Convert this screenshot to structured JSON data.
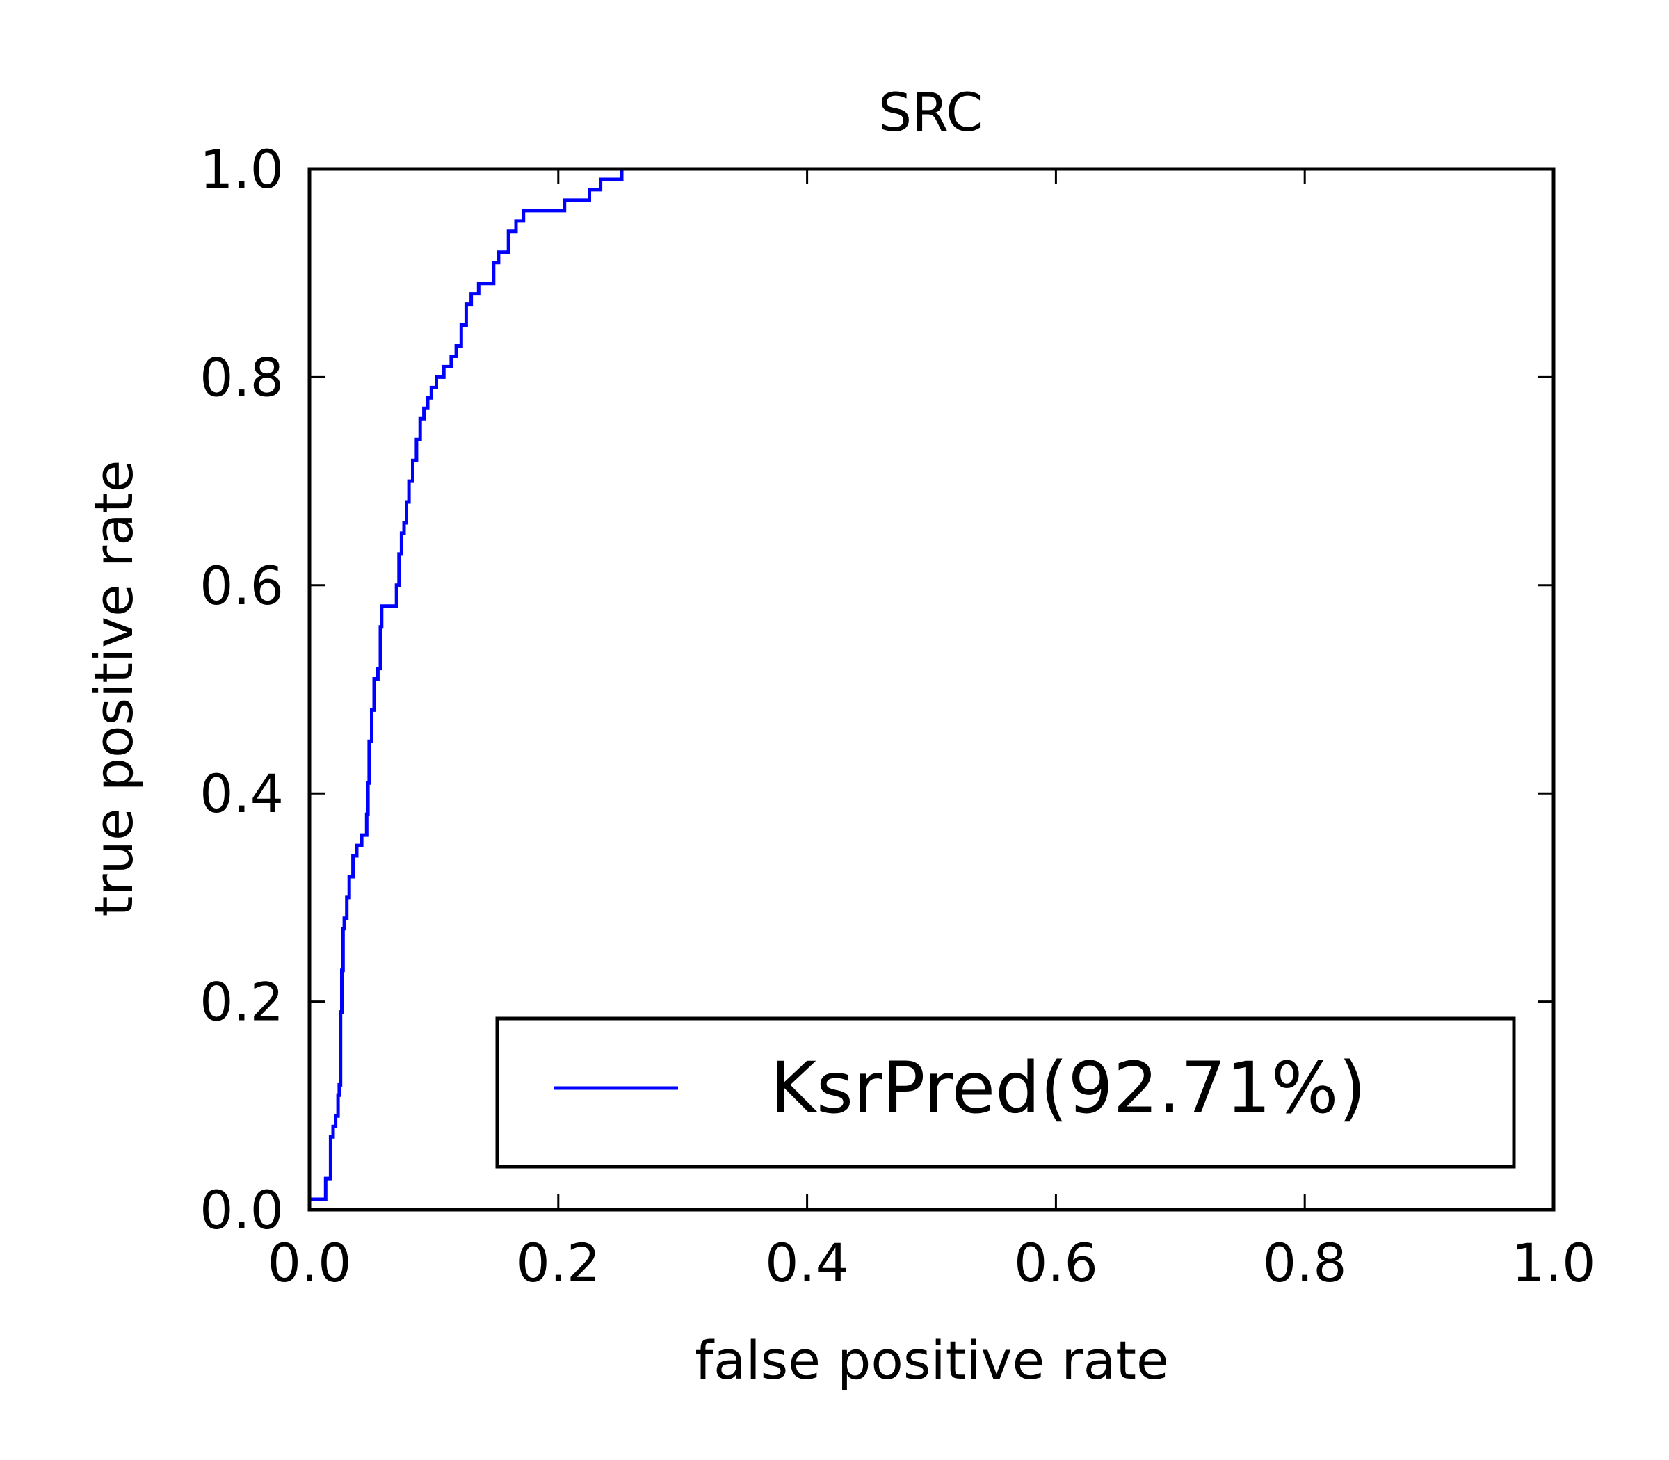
{
  "chart_data": {
    "type": "line",
    "title": "SRC",
    "xlabel": "false positive rate",
    "ylabel": "true positive rate",
    "xlim": [
      0.0,
      1.0
    ],
    "ylim": [
      0.0,
      1.0
    ],
    "xticks": [
      "0.0",
      "0.2",
      "0.4",
      "0.6",
      "0.8",
      "1.0"
    ],
    "yticks": [
      "0.0",
      "0.2",
      "0.4",
      "0.6",
      "0.8",
      "1.0"
    ],
    "grid": false,
    "legend_position": "lower-right",
    "series": [
      {
        "name": "KsrPred(92.71%)",
        "color": "#0000ff",
        "x": [
          0.0,
          0.013,
          0.013,
          0.017,
          0.017,
          0.019,
          0.019,
          0.021,
          0.021,
          0.023,
          0.023,
          0.024,
          0.024,
          0.025,
          0.025,
          0.026,
          0.026,
          0.027,
          0.027,
          0.028,
          0.028,
          0.03,
          0.03,
          0.032,
          0.032,
          0.035,
          0.035,
          0.038,
          0.038,
          0.042,
          0.042,
          0.046,
          0.046,
          0.047,
          0.047,
          0.048,
          0.048,
          0.05,
          0.05,
          0.052,
          0.052,
          0.055,
          0.055,
          0.057,
          0.057,
          0.058,
          0.058,
          0.07,
          0.07,
          0.072,
          0.072,
          0.074,
          0.074,
          0.076,
          0.076,
          0.078,
          0.078,
          0.08,
          0.08,
          0.083,
          0.083,
          0.086,
          0.086,
          0.089,
          0.089,
          0.092,
          0.092,
          0.095,
          0.095,
          0.098,
          0.098,
          0.102,
          0.102,
          0.108,
          0.108,
          0.114,
          0.114,
          0.118,
          0.118,
          0.122,
          0.122,
          0.126,
          0.126,
          0.13,
          0.13,
          0.136,
          0.136,
          0.148,
          0.148,
          0.152,
          0.152,
          0.16,
          0.16,
          0.166,
          0.166,
          0.172,
          0.172,
          0.205,
          0.205,
          0.225,
          0.225,
          0.234,
          0.234,
          0.251,
          0.251,
          1.0
        ],
        "y": [
          0.01,
          0.01,
          0.03,
          0.03,
          0.07,
          0.07,
          0.08,
          0.08,
          0.09,
          0.09,
          0.11,
          0.11,
          0.12,
          0.12,
          0.19,
          0.19,
          0.23,
          0.23,
          0.27,
          0.27,
          0.28,
          0.28,
          0.3,
          0.3,
          0.32,
          0.32,
          0.34,
          0.34,
          0.35,
          0.35,
          0.36,
          0.36,
          0.38,
          0.38,
          0.41,
          0.41,
          0.45,
          0.45,
          0.48,
          0.48,
          0.51,
          0.51,
          0.52,
          0.52,
          0.56,
          0.56,
          0.58,
          0.58,
          0.6,
          0.6,
          0.63,
          0.63,
          0.65,
          0.65,
          0.66,
          0.66,
          0.68,
          0.68,
          0.7,
          0.7,
          0.72,
          0.72,
          0.74,
          0.74,
          0.76,
          0.76,
          0.77,
          0.77,
          0.78,
          0.78,
          0.79,
          0.79,
          0.8,
          0.8,
          0.81,
          0.81,
          0.82,
          0.82,
          0.83,
          0.83,
          0.85,
          0.85,
          0.87,
          0.87,
          0.88,
          0.88,
          0.89,
          0.89,
          0.91,
          0.91,
          0.92,
          0.92,
          0.94,
          0.94,
          0.95,
          0.95,
          0.96,
          0.96,
          0.97,
          0.97,
          0.98,
          0.98,
          0.99,
          0.99,
          1.0,
          1.0
        ]
      }
    ]
  }
}
